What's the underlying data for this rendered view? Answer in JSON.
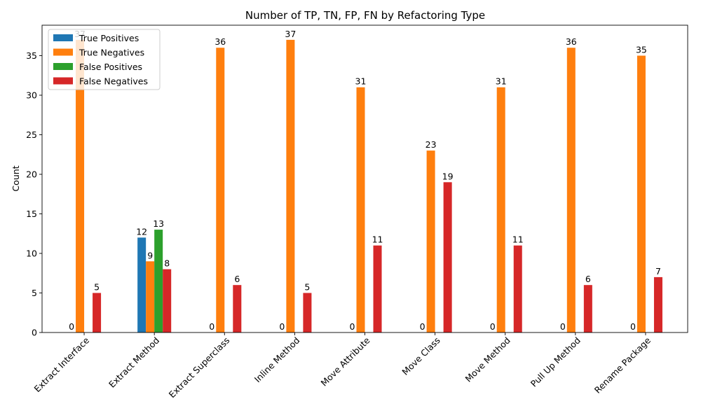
{
  "chart_data": {
    "type": "bar",
    "title": "Number of TP, TN, FP, FN by Refactoring Type",
    "xlabel": "",
    "ylabel": "Count",
    "ylim": [
      0,
      38.85
    ],
    "yticks": [
      0,
      5,
      10,
      15,
      20,
      25,
      30,
      35
    ],
    "grid": false,
    "legend_position": "top-left",
    "categories": [
      "Extract Interface",
      "Extract Method",
      "Extract Superclass",
      "Inline Method",
      "Move Attribute",
      "Move Class",
      "Move Method",
      "Pull Up Method",
      "Rename Package"
    ],
    "series": [
      {
        "name": "True Positives",
        "color": "#1f77b4",
        "values": [
          0,
          12,
          0,
          0,
          0,
          0,
          0,
          0,
          0
        ]
      },
      {
        "name": "True Negatives",
        "color": "#ff7f0e",
        "values": [
          37,
          9,
          36,
          37,
          31,
          23,
          31,
          36,
          35
        ]
      },
      {
        "name": "False Positives",
        "color": "#2ca02c",
        "values": [
          0,
          13,
          0,
          0,
          0,
          0,
          0,
          0,
          0
        ]
      },
      {
        "name": "False Negatives",
        "color": "#d62728",
        "values": [
          5,
          8,
          6,
          5,
          11,
          19,
          11,
          6,
          7
        ]
      }
    ]
  }
}
